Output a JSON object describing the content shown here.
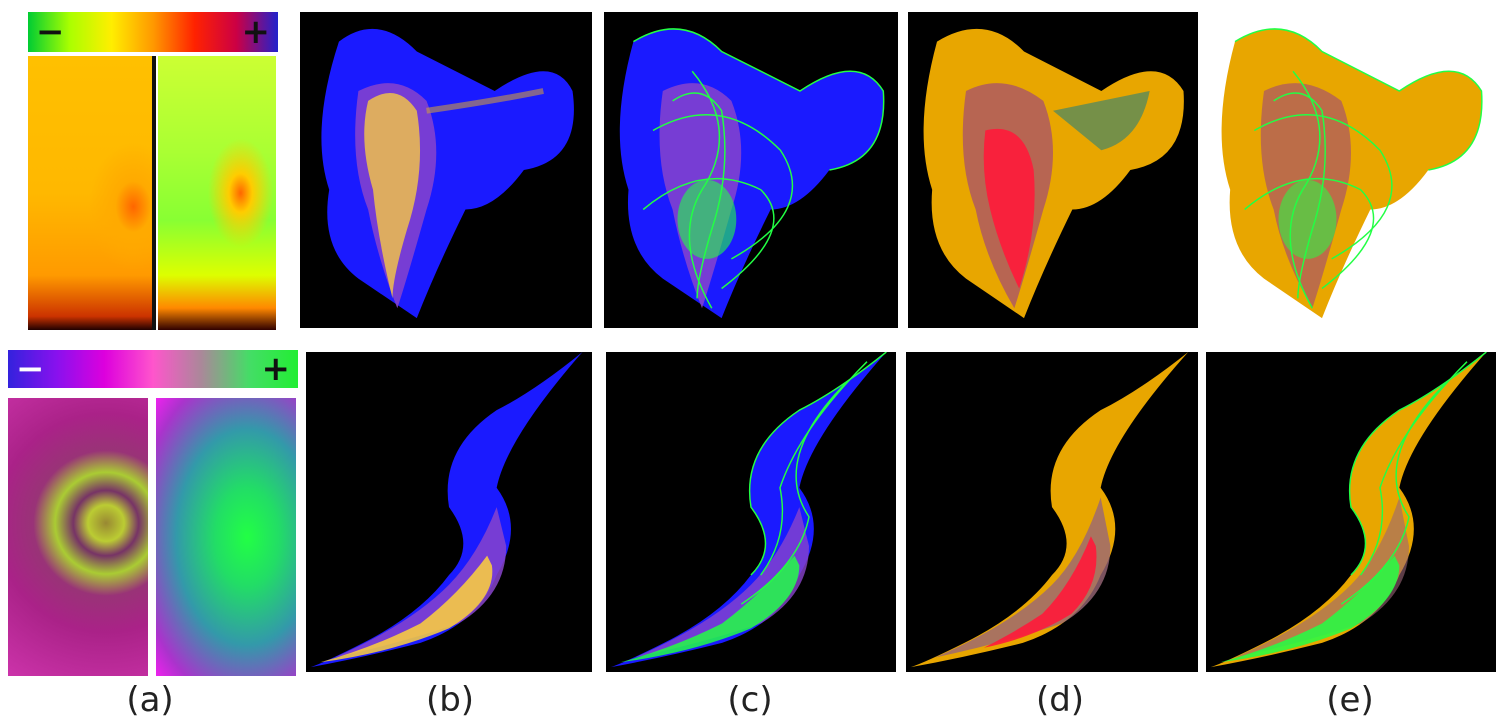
{
  "figure": {
    "captions": [
      "(a)",
      "(b)",
      "(c)",
      "(d)",
      "(e)"
    ]
  },
  "colorbars": {
    "top": {
      "minus": "−",
      "plus": "+",
      "colors": [
        "#00cc33",
        "#ccff00",
        "#ffcc00",
        "#ff3300",
        "#cc0033",
        "#2222cc"
      ]
    },
    "bottom": {
      "minus": "−",
      "plus": "+",
      "colors": [
        "#3322dd",
        "#cc00dd",
        "#ff44cc",
        "#998888",
        "#22ee33"
      ]
    }
  },
  "colors": {
    "blue_fill": "#1a1aff",
    "yellow_highlight": "#ffd23a",
    "green_outline": "#22ff44",
    "orange_fill": "#e8a600",
    "red_highlight": "#ff1a3a"
  }
}
